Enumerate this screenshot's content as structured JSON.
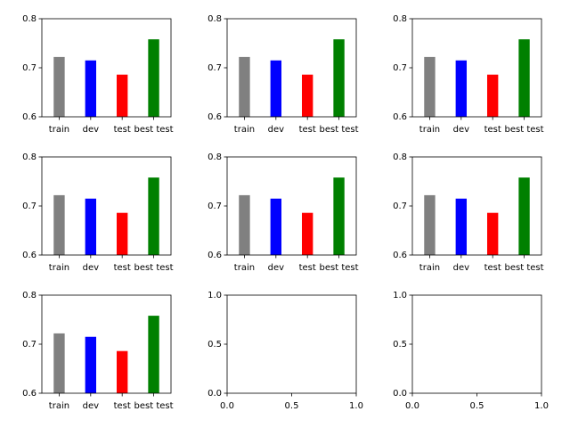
{
  "chart_data": [
    {
      "type": "bar",
      "categories": [
        "train",
        "dev",
        "test",
        "best test"
      ],
      "values": [
        0.722,
        0.715,
        0.686,
        0.758
      ],
      "colors": [
        "#808080",
        "#0000ff",
        "#ff0000",
        "#008000"
      ],
      "ylim": [
        0.6,
        0.8
      ],
      "yticks": [
        "0.6",
        "0.7",
        "0.8"
      ]
    },
    {
      "type": "bar",
      "categories": [
        "train",
        "dev",
        "test",
        "best test"
      ],
      "values": [
        0.722,
        0.715,
        0.686,
        0.758
      ],
      "colors": [
        "#808080",
        "#0000ff",
        "#ff0000",
        "#008000"
      ],
      "ylim": [
        0.6,
        0.8
      ],
      "yticks": [
        "0.6",
        "0.7",
        "0.8"
      ]
    },
    {
      "type": "bar",
      "categories": [
        "train",
        "dev",
        "test",
        "best test"
      ],
      "values": [
        0.722,
        0.715,
        0.686,
        0.758
      ],
      "colors": [
        "#808080",
        "#0000ff",
        "#ff0000",
        "#008000"
      ],
      "ylim": [
        0.6,
        0.8
      ],
      "yticks": [
        "0.6",
        "0.7",
        "0.8"
      ]
    },
    {
      "type": "bar",
      "categories": [
        "train",
        "dev",
        "test",
        "best test"
      ],
      "values": [
        0.722,
        0.715,
        0.686,
        0.758
      ],
      "colors": [
        "#808080",
        "#0000ff",
        "#ff0000",
        "#008000"
      ],
      "ylim": [
        0.6,
        0.8
      ],
      "yticks": [
        "0.6",
        "0.7",
        "0.8"
      ]
    },
    {
      "type": "bar",
      "categories": [
        "train",
        "dev",
        "test",
        "best test"
      ],
      "values": [
        0.722,
        0.715,
        0.686,
        0.758
      ],
      "colors": [
        "#808080",
        "#0000ff",
        "#ff0000",
        "#008000"
      ],
      "ylim": [
        0.6,
        0.8
      ],
      "yticks": [
        "0.6",
        "0.7",
        "0.8"
      ]
    },
    {
      "type": "bar",
      "categories": [
        "train",
        "dev",
        "test",
        "best test"
      ],
      "values": [
        0.722,
        0.715,
        0.686,
        0.758
      ],
      "colors": [
        "#808080",
        "#0000ff",
        "#ff0000",
        "#008000"
      ],
      "ylim": [
        0.6,
        0.8
      ],
      "yticks": [
        "0.6",
        "0.7",
        "0.8"
      ]
    },
    {
      "type": "bar",
      "categories": [
        "train",
        "dev",
        "test",
        "best test"
      ],
      "values": [
        0.722,
        0.715,
        0.686,
        0.758
      ],
      "colors": [
        "#808080",
        "#0000ff",
        "#ff0000",
        "#008000"
      ],
      "ylim": [
        0.6,
        0.8
      ],
      "yticks": [
        "0.6",
        "0.7",
        "0.8"
      ]
    },
    {
      "type": "empty",
      "xlim": [
        0.0,
        1.0
      ],
      "ylim": [
        0.0,
        1.0
      ],
      "xticks": [
        "0.0",
        "0.5",
        "1.0"
      ],
      "yticks": [
        "0.0",
        "0.5",
        "1.0"
      ]
    },
    {
      "type": "empty",
      "xlim": [
        0.0,
        1.0
      ],
      "ylim": [
        0.0,
        1.0
      ],
      "xticks": [
        "0.0",
        "0.5",
        "1.0"
      ],
      "yticks": [
        "0.0",
        "0.5",
        "1.0"
      ]
    }
  ]
}
